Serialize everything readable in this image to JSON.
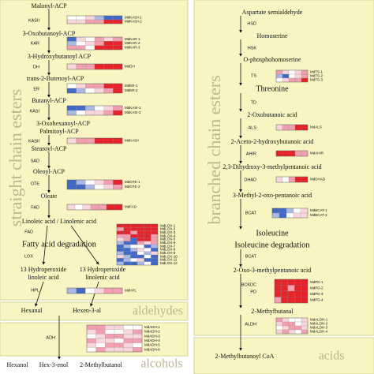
{
  "left": {
    "title": "straight chain esters",
    "section": "Fatty acid degradation",
    "compounds": [
      "Malonyl-ACP",
      "3-Oxobutanoyl-ACP",
      "3-Hydroxybutanoyl ACP",
      "trans-2-Butenoyl-ACP",
      "Butanyl-ACP",
      "3-Oxohexanoyl-ACP",
      "Palmitoyl-ACP",
      "Stearoyl-ACP",
      "Oleoyl-ACP",
      "Oleate",
      "Linoleic acid / Linolenic acid",
      "13 Hydroperoxide",
      "linoleic acid",
      "13 Hydroperoxide",
      "linolenic acid"
    ],
    "enzymes": [
      "KASII",
      "KAR",
      "DH",
      "ER",
      "KASI",
      "KASII",
      "SAD",
      "OTE",
      "FAD",
      "FAD",
      "LOX",
      "HPL"
    ]
  },
  "aldehydes": {
    "title": "aldehydes",
    "compounds": [
      "Hexanal",
      "Hexen-3-al"
    ]
  },
  "alcohols": {
    "title": "alcohols",
    "enzyme": "ADH",
    "compounds": [
      "Hexanol",
      "Hex-3-enol",
      "2-Methylbutanol"
    ]
  },
  "right": {
    "title": "branched chain esters",
    "section": "Isoleucine degradation",
    "compounds": [
      "Aspartate semialdehyde",
      "Homoserine",
      "O-phosphohomoserine",
      "Threonine",
      "2-Oxobutanoic acid",
      "2-Aceto-2-hydroxybutanoic acid",
      "2,3-Dihydroxy-3-methylpentanoic acid",
      "3-Methyl-2-oxo-pentanoic acid",
      "Isoleucine",
      "2-Oxo-3-methylpentanoic acid",
      "2-Methylbutanal"
    ],
    "enzymes": [
      "HSD",
      "HSK",
      "TS",
      "TD",
      "ALS",
      "AHIR",
      "DHAD",
      "BCAT",
      "BCAT",
      "BCKDC",
      "PD",
      "ALDH"
    ]
  },
  "acids": {
    "title": "acids",
    "compounds": [
      "2-Methylbutanoyl CoA"
    ]
  },
  "palette": {
    "r": "#e5232b",
    "p": "#f2a0b0",
    "l": "#f9d6dc",
    "w": "#ffffff",
    "b": "#4169c8",
    "c": "#aab8e6"
  },
  "heatmaps": [
    {
      "genes": [
        "MdKASII-1",
        "MdKASII-2"
      ],
      "cells": [
        "wwlcbb",
        "llpprr"
      ]
    },
    {
      "genes": [
        "MdKAR-1",
        "MdKAR-2",
        "MdKAR-3"
      ],
      "cells": [
        "blwplp",
        "cwlprr",
        "ppwrrr"
      ]
    },
    {
      "genes": [
        "MdDH"
      ],
      "cells": [
        "lpprrr"
      ]
    },
    {
      "genes": [
        "MdER-1",
        "MdER-2"
      ],
      "cells": [
        "wlpprr",
        "bcwlpr"
      ]
    },
    {
      "genes": [
        "MdKASI-1",
        "MdKASI-2"
      ],
      "cells": [
        "bbcwlp",
        "cwllpr"
      ]
    },
    {
      "genes": [
        "MdKASII"
      ],
      "cells": [
        "lpprrr"
      ]
    },
    {
      "genes": [
        "MdOTE-1",
        "MdOTE-2"
      ],
      "cells": [
        "bcwlpr",
        "bbcwlp"
      ]
    },
    {
      "genes": [
        "MdFAD"
      ],
      "cells": [
        "lwlpprr"
      ]
    },
    {
      "genes": [
        "MdLOX-1",
        "MdLOX-2",
        "MdLOX-3",
        "MdLOX-4",
        "MdLOX-5",
        "MdLOX-6",
        "MdLOX-7",
        "MdLOX-8",
        "MdLOX-9",
        "MdLOX-10",
        "MdLOX-11",
        "MdLOX-12"
      ],
      "cells": [
        "rrrrrr",
        "prrrrr",
        "rrprrr",
        "pprrrp",
        "lpbrrp",
        "cbbplp",
        "bcwwbc",
        "bbclwb",
        "cbbwcl",
        "lcbbwb",
        "bcwlbb",
        "cbbcwb"
      ]
    },
    {
      "genes": [
        "MdHPL"
      ],
      "cells": [
        "cbwlpp"
      ]
    },
    {
      "genes": [
        "MdADH-1",
        "MdADH-2",
        "MdADH-3",
        "MdADH-4",
        "MdADH-5",
        "MdADH-6"
      ],
      "cells": [
        "ppllww",
        "lpwwlp",
        "wlppll",
        "pllwpp",
        "lwpplw",
        "wplllp"
      ]
    },
    {
      "genes": [
        "MdTS-1",
        "MdTS-2",
        "MdTS-3"
      ],
      "cells": [
        "plwlp",
        "cbwlp",
        "wlppr"
      ]
    },
    {
      "genes": [
        "MdALS"
      ],
      "cells": [
        "lpprr"
      ]
    },
    {
      "genes": [
        "MdAHIR"
      ],
      "cells": [
        "rrrpp"
      ]
    },
    {
      "genes": [
        "MdDHAD"
      ],
      "cells": [
        "lwprr"
      ]
    },
    {
      "genes": [
        "MdBCAT-1",
        "MdBCAT-2"
      ],
      "cells": [
        "bbcwl",
        "cbwll"
      ]
    },
    {
      "genes": [
        "MdPD-1",
        "MdPD-2",
        "MdPD-3",
        "MdPD-4"
      ],
      "cells": [
        "rrrrr",
        "rrprr",
        "rrrrr",
        "prrrr"
      ]
    },
    {
      "genes": [
        "MdALDH-1",
        "MdALDH-2",
        "MdALDH-3",
        "MdALDH-4"
      ],
      "cells": [
        "plwwl",
        "lppwl",
        "wlppl",
        "lplwp"
      ]
    }
  ]
}
